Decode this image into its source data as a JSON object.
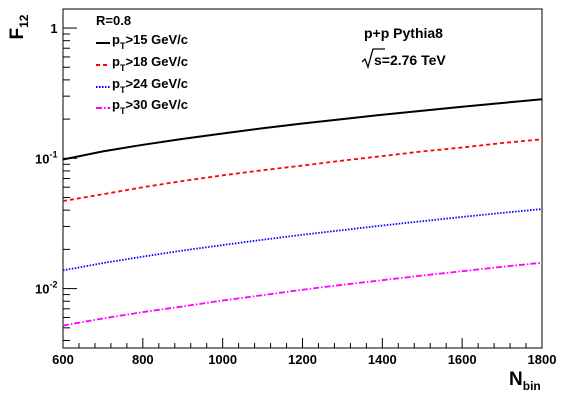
{
  "chart_data": {
    "type": "line",
    "title": "",
    "xlabel": {
      "main": "N",
      "sub": "bin"
    },
    "ylabel": {
      "main": "F",
      "sub": "12"
    },
    "xlim": [
      600,
      1800
    ],
    "ylim": [
      0.0035,
      1.4
    ],
    "yscale": "log",
    "grid": false,
    "legend_position": "top-left",
    "x_ticks": [
      600,
      800,
      1000,
      1200,
      1400,
      1600,
      1800
    ],
    "x_tick_labels": [
      "600",
      "800",
      "1000",
      "1200",
      "1400",
      "1600",
      "1800"
    ],
    "y_ticks": [
      {
        "value": 0.01,
        "base": "10",
        "exp": "-2"
      },
      {
        "value": 0.1,
        "base": "10",
        "exp": "-1"
      },
      {
        "value": 1,
        "base": "1",
        "exp": ""
      }
    ],
    "annotations": {
      "radius": "R=0.8",
      "system": "p+p Pythia8",
      "energy_sqrt": "s",
      "energy_rest": "=2.76 TeV"
    },
    "x": [
      600,
      700,
      800,
      900,
      1000,
      1100,
      1200,
      1300,
      1400,
      1500,
      1600,
      1700,
      1800
    ],
    "series": [
      {
        "name": "p_T>15 GeV/c",
        "label_main": "p",
        "label_sub": "T",
        "label_rest": ">15 GeV/c",
        "color": "#000000",
        "dash": "",
        "values": [
          0.098,
          0.113,
          0.127,
          0.141,
          0.155,
          0.17,
          0.185,
          0.2,
          0.216,
          0.232,
          0.249,
          0.266,
          0.284
        ]
      },
      {
        "name": "p_T>18 GeV/c",
        "label_main": "p",
        "label_sub": "T",
        "label_rest": ">18 GeV/c",
        "color": "#ff0000",
        "dash": "4,3",
        "values": [
          0.047,
          0.053,
          0.06,
          0.067,
          0.074,
          0.081,
          0.088,
          0.096,
          0.104,
          0.113,
          0.121,
          0.131,
          0.14
        ]
      },
      {
        "name": "p_T>24 GeV/c",
        "label_main": "p",
        "label_sub": "T",
        "label_rest": ">24 GeV/c",
        "color": "#0000ff",
        "dash": "1.5,1.5",
        "values": [
          0.0138,
          0.0157,
          0.0176,
          0.0196,
          0.0216,
          0.0237,
          0.0259,
          0.0281,
          0.0305,
          0.0329,
          0.0355,
          0.0381,
          0.0408
        ]
      },
      {
        "name": "p_T>30 GeV/c",
        "label_main": "p",
        "label_sub": "T",
        "label_rest": ">30 GeV/c",
        "color": "#ff00ff",
        "dash": "6,2,1.5,2",
        "values": [
          0.0052,
          0.0059,
          0.0066,
          0.0073,
          0.0081,
          0.0089,
          0.0098,
          0.0107,
          0.0116,
          0.0126,
          0.0136,
          0.0147,
          0.0158
        ]
      }
    ]
  }
}
